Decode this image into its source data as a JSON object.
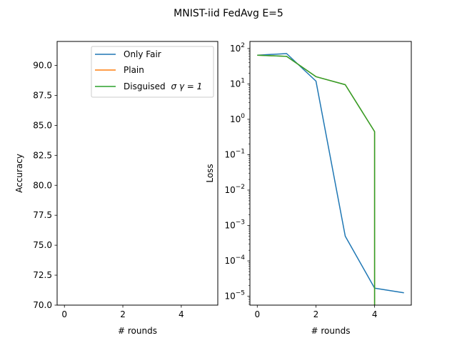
{
  "figure": {
    "title": "MNIST-iid FedAvg E=5"
  },
  "colors": {
    "only_fair": "#1f77b4",
    "plain": "#ff7f0e",
    "disguised": "#2ca02c"
  },
  "chart_data": [
    {
      "type": "line",
      "title": "",
      "xlabel": "# rounds",
      "ylabel": "Accuracy",
      "xlim": [
        -0.25,
        5.25
      ],
      "ylim": [
        70.0,
        92.0
      ],
      "xticks": [
        0,
        2,
        4
      ],
      "yticks": [
        70.0,
        72.5,
        75.0,
        77.5,
        80.0,
        82.5,
        85.0,
        87.5,
        90.0
      ],
      "ytick_labels": [
        "70.0",
        "72.5",
        "75.0",
        "77.5",
        "80.0",
        "82.5",
        "85.0",
        "87.5",
        "90.0"
      ],
      "grid": false,
      "legend": {
        "position": "top-right",
        "entries": [
          {
            "label": "Only Fair",
            "color": "#1f77b4"
          },
          {
            "label": "Plain",
            "color": "#ff7f0e"
          },
          {
            "label": "Disguised",
            "math": "σ γ = 1",
            "color": "#2ca02c"
          }
        ]
      },
      "series": [
        {
          "name": "Only Fair",
          "color": "#1f77b4",
          "x": [],
          "y": []
        },
        {
          "name": "Plain",
          "color": "#ff7f0e",
          "x": [],
          "y": []
        },
        {
          "name": "Disguised σ γ = 1",
          "color": "#2ca02c",
          "x": [],
          "y": []
        }
      ]
    },
    {
      "type": "line",
      "title": "",
      "xlabel": "# rounds",
      "ylabel": "Loss",
      "yscale": "log",
      "xlim": [
        -0.25,
        5.25
      ],
      "ylim_log10": [
        -5.25,
        2.2
      ],
      "xticks": [
        0,
        2,
        4
      ],
      "yticks_exp": [
        2,
        1,
        0,
        -1,
        -2,
        -3,
        -4,
        -5
      ],
      "grid": false,
      "series": [
        {
          "name": "Only Fair",
          "color": "#1f77b4",
          "x": [
            0,
            1,
            2,
            3,
            4,
            5
          ],
          "y": [
            65,
            72,
            12,
            0.0005,
            1.7e-05,
            1.25e-05
          ]
        },
        {
          "name": "Plain",
          "color": "#ff7f0e",
          "x": [
            0,
            1,
            2,
            3,
            4,
            4
          ],
          "y": [
            65,
            60,
            16,
            9.5,
            0.45,
            1e-07
          ]
        },
        {
          "name": "Disguised σ γ = 1",
          "color": "#2ca02c",
          "x": [
            0,
            1,
            2,
            3,
            4,
            4
          ],
          "y": [
            65,
            60,
            16,
            9.5,
            0.45,
            1e-07
          ]
        }
      ]
    }
  ]
}
